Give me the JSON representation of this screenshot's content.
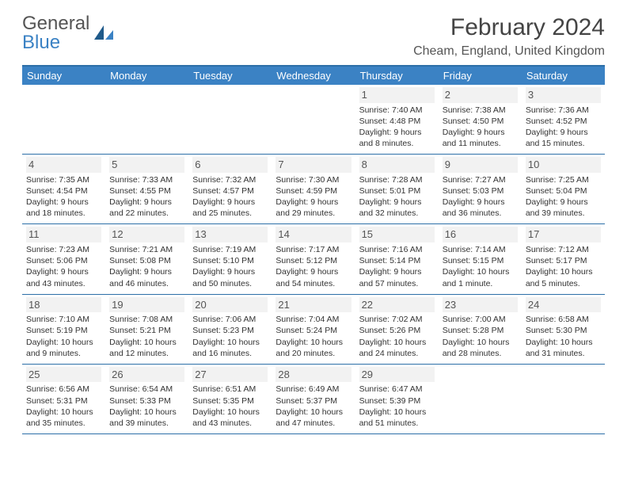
{
  "logo": {
    "word1": "General",
    "word2": "Blue"
  },
  "title": "February 2024",
  "location": "Cheam, England, United Kingdom",
  "colors": {
    "header_bg": "#3b82c4",
    "header_text": "#ffffff",
    "border": "#2d6fa8",
    "daynum_bg": "#f2f2f2",
    "text": "#333333",
    "logo_gray": "#555555",
    "logo_blue": "#3b82c4"
  },
  "day_headers": [
    "Sunday",
    "Monday",
    "Tuesday",
    "Wednesday",
    "Thursday",
    "Friday",
    "Saturday"
  ],
  "weeks": [
    [
      null,
      null,
      null,
      null,
      {
        "n": "1",
        "sr": "Sunrise: 7:40 AM",
        "ss": "Sunset: 4:48 PM",
        "dl1": "Daylight: 9 hours",
        "dl2": "and 8 minutes."
      },
      {
        "n": "2",
        "sr": "Sunrise: 7:38 AM",
        "ss": "Sunset: 4:50 PM",
        "dl1": "Daylight: 9 hours",
        "dl2": "and 11 minutes."
      },
      {
        "n": "3",
        "sr": "Sunrise: 7:36 AM",
        "ss": "Sunset: 4:52 PM",
        "dl1": "Daylight: 9 hours",
        "dl2": "and 15 minutes."
      }
    ],
    [
      {
        "n": "4",
        "sr": "Sunrise: 7:35 AM",
        "ss": "Sunset: 4:54 PM",
        "dl1": "Daylight: 9 hours",
        "dl2": "and 18 minutes."
      },
      {
        "n": "5",
        "sr": "Sunrise: 7:33 AM",
        "ss": "Sunset: 4:55 PM",
        "dl1": "Daylight: 9 hours",
        "dl2": "and 22 minutes."
      },
      {
        "n": "6",
        "sr": "Sunrise: 7:32 AM",
        "ss": "Sunset: 4:57 PM",
        "dl1": "Daylight: 9 hours",
        "dl2": "and 25 minutes."
      },
      {
        "n": "7",
        "sr": "Sunrise: 7:30 AM",
        "ss": "Sunset: 4:59 PM",
        "dl1": "Daylight: 9 hours",
        "dl2": "and 29 minutes."
      },
      {
        "n": "8",
        "sr": "Sunrise: 7:28 AM",
        "ss": "Sunset: 5:01 PM",
        "dl1": "Daylight: 9 hours",
        "dl2": "and 32 minutes."
      },
      {
        "n": "9",
        "sr": "Sunrise: 7:27 AM",
        "ss": "Sunset: 5:03 PM",
        "dl1": "Daylight: 9 hours",
        "dl2": "and 36 minutes."
      },
      {
        "n": "10",
        "sr": "Sunrise: 7:25 AM",
        "ss": "Sunset: 5:04 PM",
        "dl1": "Daylight: 9 hours",
        "dl2": "and 39 minutes."
      }
    ],
    [
      {
        "n": "11",
        "sr": "Sunrise: 7:23 AM",
        "ss": "Sunset: 5:06 PM",
        "dl1": "Daylight: 9 hours",
        "dl2": "and 43 minutes."
      },
      {
        "n": "12",
        "sr": "Sunrise: 7:21 AM",
        "ss": "Sunset: 5:08 PM",
        "dl1": "Daylight: 9 hours",
        "dl2": "and 46 minutes."
      },
      {
        "n": "13",
        "sr": "Sunrise: 7:19 AM",
        "ss": "Sunset: 5:10 PM",
        "dl1": "Daylight: 9 hours",
        "dl2": "and 50 minutes."
      },
      {
        "n": "14",
        "sr": "Sunrise: 7:17 AM",
        "ss": "Sunset: 5:12 PM",
        "dl1": "Daylight: 9 hours",
        "dl2": "and 54 minutes."
      },
      {
        "n": "15",
        "sr": "Sunrise: 7:16 AM",
        "ss": "Sunset: 5:14 PM",
        "dl1": "Daylight: 9 hours",
        "dl2": "and 57 minutes."
      },
      {
        "n": "16",
        "sr": "Sunrise: 7:14 AM",
        "ss": "Sunset: 5:15 PM",
        "dl1": "Daylight: 10 hours",
        "dl2": "and 1 minute."
      },
      {
        "n": "17",
        "sr": "Sunrise: 7:12 AM",
        "ss": "Sunset: 5:17 PM",
        "dl1": "Daylight: 10 hours",
        "dl2": "and 5 minutes."
      }
    ],
    [
      {
        "n": "18",
        "sr": "Sunrise: 7:10 AM",
        "ss": "Sunset: 5:19 PM",
        "dl1": "Daylight: 10 hours",
        "dl2": "and 9 minutes."
      },
      {
        "n": "19",
        "sr": "Sunrise: 7:08 AM",
        "ss": "Sunset: 5:21 PM",
        "dl1": "Daylight: 10 hours",
        "dl2": "and 12 minutes."
      },
      {
        "n": "20",
        "sr": "Sunrise: 7:06 AM",
        "ss": "Sunset: 5:23 PM",
        "dl1": "Daylight: 10 hours",
        "dl2": "and 16 minutes."
      },
      {
        "n": "21",
        "sr": "Sunrise: 7:04 AM",
        "ss": "Sunset: 5:24 PM",
        "dl1": "Daylight: 10 hours",
        "dl2": "and 20 minutes."
      },
      {
        "n": "22",
        "sr": "Sunrise: 7:02 AM",
        "ss": "Sunset: 5:26 PM",
        "dl1": "Daylight: 10 hours",
        "dl2": "and 24 minutes."
      },
      {
        "n": "23",
        "sr": "Sunrise: 7:00 AM",
        "ss": "Sunset: 5:28 PM",
        "dl1": "Daylight: 10 hours",
        "dl2": "and 28 minutes."
      },
      {
        "n": "24",
        "sr": "Sunrise: 6:58 AM",
        "ss": "Sunset: 5:30 PM",
        "dl1": "Daylight: 10 hours",
        "dl2": "and 31 minutes."
      }
    ],
    [
      {
        "n": "25",
        "sr": "Sunrise: 6:56 AM",
        "ss": "Sunset: 5:31 PM",
        "dl1": "Daylight: 10 hours",
        "dl2": "and 35 minutes."
      },
      {
        "n": "26",
        "sr": "Sunrise: 6:54 AM",
        "ss": "Sunset: 5:33 PM",
        "dl1": "Daylight: 10 hours",
        "dl2": "and 39 minutes."
      },
      {
        "n": "27",
        "sr": "Sunrise: 6:51 AM",
        "ss": "Sunset: 5:35 PM",
        "dl1": "Daylight: 10 hours",
        "dl2": "and 43 minutes."
      },
      {
        "n": "28",
        "sr": "Sunrise: 6:49 AM",
        "ss": "Sunset: 5:37 PM",
        "dl1": "Daylight: 10 hours",
        "dl2": "and 47 minutes."
      },
      {
        "n": "29",
        "sr": "Sunrise: 6:47 AM",
        "ss": "Sunset: 5:39 PM",
        "dl1": "Daylight: 10 hours",
        "dl2": "and 51 minutes."
      },
      null,
      null
    ]
  ]
}
